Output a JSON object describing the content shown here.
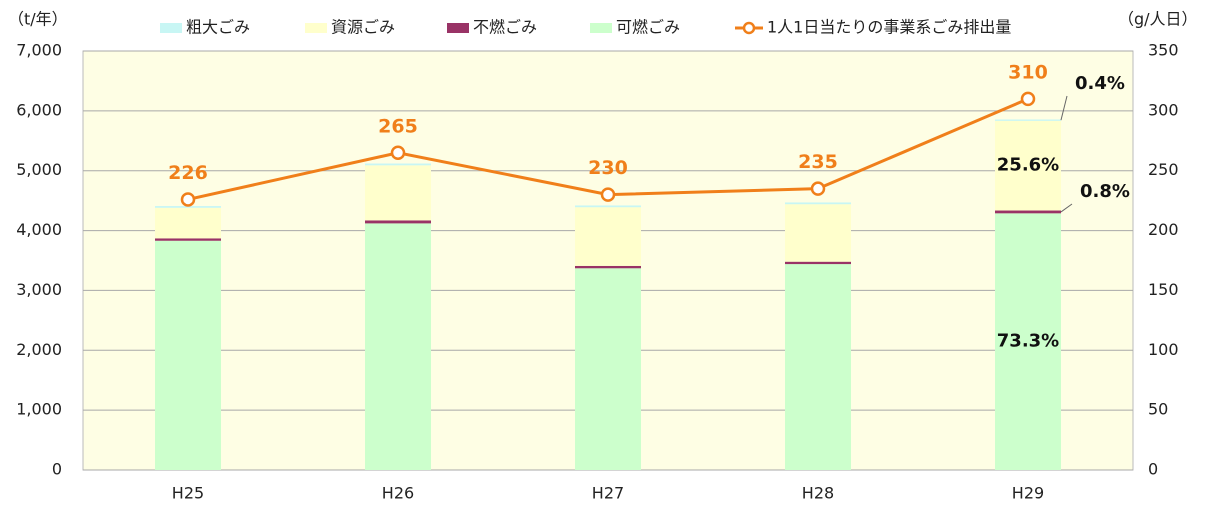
{
  "chart_data": {
    "type": "bar",
    "categories": [
      "H25",
      "H26",
      "H27",
      "H28",
      "H29"
    ],
    "series": [
      {
        "name": "粗大ごみ",
        "color": "#c8f6f4",
        "values": [
          30,
          30,
          30,
          30,
          23
        ]
      },
      {
        "name": "資源ごみ",
        "color": "#ffffcc",
        "values": [
          510,
          920,
          980,
          960,
          1498
        ]
      },
      {
        "name": "不燃ごみ",
        "color": "#993366",
        "values": [
          40,
          50,
          40,
          40,
          47
        ]
      },
      {
        "name": "可燃ごみ",
        "color": "#ccffcc",
        "values": [
          3830,
          4120,
          3370,
          3440,
          4288
        ]
      },
      {
        "name": "1人1日当たりの事業系ごみ排出量",
        "type": "line",
        "axis": "y2",
        "color": "#f07f1a",
        "values": [
          226,
          265,
          230,
          235,
          310
        ]
      }
    ],
    "ylabel": "（t/年）",
    "y2label": "（g/人日）",
    "ylim": [
      0,
      7000
    ],
    "yticks": [
      0,
      {
        "value": 1000,
        "label": "1,000"
      },
      {
        "value": 2000,
        "label": "2,000"
      },
      {
        "value": 3000,
        "label": "3,000"
      },
      {
        "value": 4000,
        "label": "4,000"
      },
      {
        "value": 5000,
        "label": "5,000"
      },
      {
        "value": 6000,
        "label": "6,000"
      },
      {
        "value": 7000,
        "label": "7,000"
      }
    ],
    "y2lim": [
      0,
      350
    ],
    "y2ticks": [
      0,
      50,
      100,
      150,
      200,
      250,
      300,
      350
    ],
    "annotations": [
      "0.4%",
      "25.6%",
      "0.8%",
      "73.3%"
    ],
    "grid": true,
    "legend": "top"
  }
}
